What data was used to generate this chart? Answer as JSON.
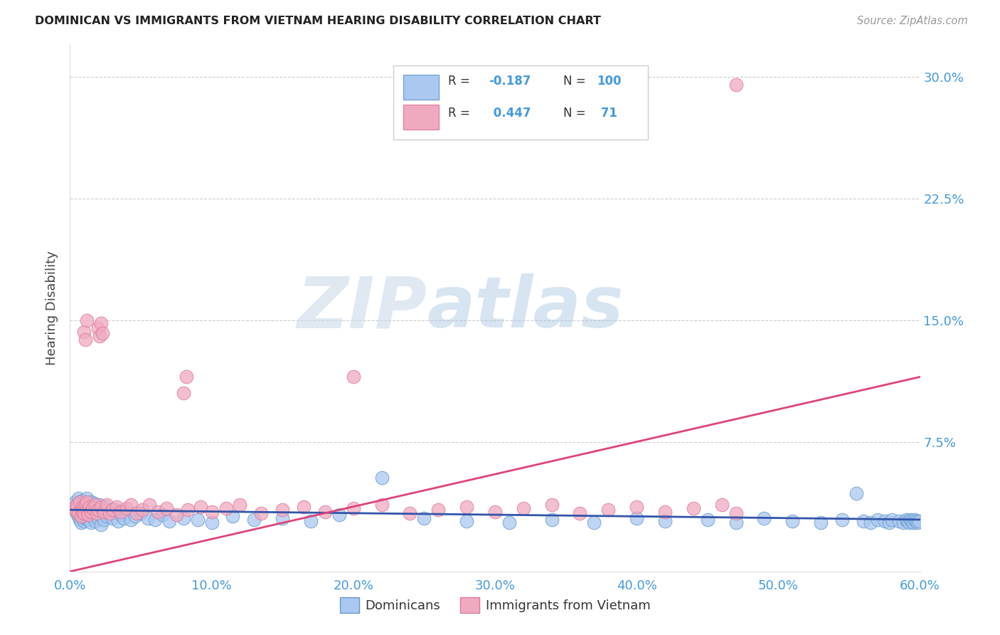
{
  "title": "DOMINICAN VS IMMIGRANTS FROM VIETNAM HEARING DISABILITY CORRELATION CHART",
  "source": "Source: ZipAtlas.com",
  "xmin": 0.0,
  "xmax": 0.6,
  "ymin": -0.005,
  "ymax": 0.32,
  "watermark_zip": "ZIP",
  "watermark_atlas": "atlas",
  "series1_color": "#aac8f0",
  "series1_edge": "#6699cc",
  "series2_color": "#f0aac0",
  "series2_edge": "#dd7799",
  "line1_color": "#3355aa",
  "line2_color": "#dd4477",
  "bg_color": "#ffffff",
  "grid_color": "#cccccc",
  "axis_color": "#4499dd",
  "title_color": "#222222",
  "ylabel_color": "#444444",
  "dom_slope": -0.01,
  "dom_intercept": 0.033,
  "viet_slope": 0.2,
  "viet_intercept": -0.005,
  "dominicans_x": [
    0.003,
    0.004,
    0.005,
    0.005,
    0.006,
    0.006,
    0.007,
    0.007,
    0.007,
    0.008,
    0.008,
    0.008,
    0.009,
    0.009,
    0.009,
    0.009,
    0.01,
    0.01,
    0.01,
    0.01,
    0.011,
    0.011,
    0.012,
    0.012,
    0.012,
    0.013,
    0.013,
    0.014,
    0.014,
    0.015,
    0.015,
    0.016,
    0.016,
    0.017,
    0.018,
    0.018,
    0.019,
    0.02,
    0.021,
    0.022,
    0.022,
    0.023,
    0.024,
    0.025,
    0.026,
    0.028,
    0.03,
    0.032,
    0.034,
    0.036,
    0.038,
    0.04,
    0.043,
    0.046,
    0.05,
    0.055,
    0.06,
    0.065,
    0.07,
    0.08,
    0.09,
    0.1,
    0.115,
    0.13,
    0.15,
    0.17,
    0.19,
    0.22,
    0.25,
    0.28,
    0.31,
    0.34,
    0.37,
    0.4,
    0.42,
    0.45,
    0.47,
    0.49,
    0.51,
    0.53,
    0.545,
    0.555,
    0.56,
    0.565,
    0.57,
    0.575,
    0.578,
    0.58,
    0.585,
    0.588,
    0.59,
    0.591,
    0.592,
    0.593,
    0.594,
    0.595,
    0.596,
    0.597,
    0.598,
    0.599
  ],
  "dominicans_y": [
    0.034,
    0.038,
    0.031,
    0.036,
    0.029,
    0.04,
    0.033,
    0.027,
    0.038,
    0.032,
    0.025,
    0.037,
    0.03,
    0.035,
    0.028,
    0.039,
    0.033,
    0.026,
    0.038,
    0.031,
    0.034,
    0.028,
    0.036,
    0.029,
    0.04,
    0.032,
    0.027,
    0.035,
    0.03,
    0.038,
    0.025,
    0.033,
    0.029,
    0.037,
    0.031,
    0.026,
    0.034,
    0.028,
    0.036,
    0.03,
    0.024,
    0.033,
    0.027,
    0.035,
    0.029,
    0.031,
    0.028,
    0.033,
    0.026,
    0.03,
    0.028,
    0.032,
    0.027,
    0.029,
    0.031,
    0.028,
    0.027,
    0.03,
    0.026,
    0.028,
    0.027,
    0.025,
    0.029,
    0.027,
    0.028,
    0.026,
    0.03,
    0.053,
    0.028,
    0.026,
    0.025,
    0.027,
    0.025,
    0.028,
    0.026,
    0.027,
    0.025,
    0.028,
    0.026,
    0.025,
    0.027,
    0.043,
    0.026,
    0.025,
    0.027,
    0.026,
    0.025,
    0.027,
    0.026,
    0.025,
    0.027,
    0.026,
    0.025,
    0.027,
    0.026,
    0.025,
    0.027,
    0.026,
    0.025,
    0.026
  ],
  "vietnam_x": [
    0.003,
    0.004,
    0.005,
    0.006,
    0.007,
    0.008,
    0.009,
    0.009,
    0.01,
    0.01,
    0.011,
    0.012,
    0.012,
    0.013,
    0.014,
    0.015,
    0.016,
    0.018,
    0.019,
    0.02,
    0.022,
    0.024,
    0.026,
    0.028,
    0.03,
    0.033,
    0.036,
    0.04,
    0.043,
    0.047,
    0.051,
    0.056,
    0.062,
    0.068,
    0.075,
    0.083,
    0.092,
    0.1,
    0.11,
    0.12,
    0.135,
    0.15,
    0.165,
    0.18,
    0.2,
    0.22,
    0.24,
    0.26,
    0.28,
    0.3,
    0.32,
    0.34,
    0.36,
    0.38,
    0.4,
    0.42,
    0.44,
    0.46,
    0.47,
    0.01,
    0.011,
    0.012,
    0.02,
    0.021,
    0.022,
    0.023,
    0.08,
    0.082,
    0.2,
    0.47
  ],
  "vietnam_y": [
    0.034,
    0.033,
    0.036,
    0.031,
    0.038,
    0.029,
    0.035,
    0.032,
    0.034,
    0.031,
    0.036,
    0.033,
    0.038,
    0.03,
    0.035,
    0.032,
    0.034,
    0.036,
    0.031,
    0.033,
    0.035,
    0.032,
    0.036,
    0.031,
    0.033,
    0.035,
    0.032,
    0.034,
    0.036,
    0.031,
    0.033,
    0.036,
    0.032,
    0.034,
    0.03,
    0.033,
    0.035,
    0.032,
    0.034,
    0.036,
    0.031,
    0.033,
    0.035,
    0.032,
    0.034,
    0.036,
    0.031,
    0.033,
    0.035,
    0.032,
    0.034,
    0.036,
    0.031,
    0.033,
    0.035,
    0.032,
    0.034,
    0.036,
    0.031,
    0.143,
    0.138,
    0.15,
    0.145,
    0.14,
    0.148,
    0.142,
    0.105,
    0.115,
    0.115,
    0.295
  ]
}
